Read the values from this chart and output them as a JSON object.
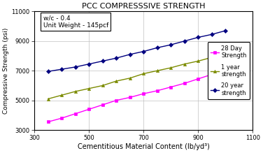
{
  "title": "PCC COMPRESSSIVE STRENGTH",
  "xlabel": "Cementitious Material Content (lb/yd³)",
  "ylabel": "Compressive Strength (psi)",
  "xlim": [
    300,
    1100
  ],
  "ylim": [
    3000,
    11000
  ],
  "xticks": [
    300,
    500,
    700,
    900,
    1100
  ],
  "yticks": [
    3000,
    5000,
    7000,
    9000,
    11000
  ],
  "annotation": "w/c - 0.4\nUnit Weight - 145pcf",
  "series": [
    {
      "label": "28 Day\nStrength",
      "color": "#FF00FF",
      "marker": "s",
      "x": [
        350,
        400,
        450,
        500,
        550,
        600,
        650,
        700,
        750,
        800,
        850,
        900,
        950,
        1000
      ],
      "y": [
        3550,
        3800,
        4100,
        4400,
        4700,
        5000,
        5200,
        5450,
        5650,
        5900,
        6150,
        6450,
        6750,
        7050
      ]
    },
    {
      "label": "1 year\nstrength",
      "color": "#7B8B00",
      "marker": "^",
      "x": [
        350,
        400,
        450,
        500,
        550,
        600,
        650,
        700,
        750,
        800,
        850,
        900,
        950,
        1000
      ],
      "y": [
        5100,
        5350,
        5600,
        5800,
        6000,
        6300,
        6500,
        6800,
        7000,
        7200,
        7450,
        7650,
        7900,
        8200
      ]
    },
    {
      "label": "20 year\nstrength",
      "color": "#000080",
      "marker": "D",
      "x": [
        350,
        400,
        450,
        500,
        550,
        600,
        650,
        700,
        750,
        800,
        850,
        900,
        950,
        1000
      ],
      "y": [
        6950,
        7100,
        7250,
        7450,
        7650,
        7850,
        8100,
        8300,
        8550,
        8750,
        9000,
        9250,
        9450,
        9700
      ]
    }
  ],
  "background_color": "#FFFFFF",
  "grid_color": "#C0C0C0"
}
